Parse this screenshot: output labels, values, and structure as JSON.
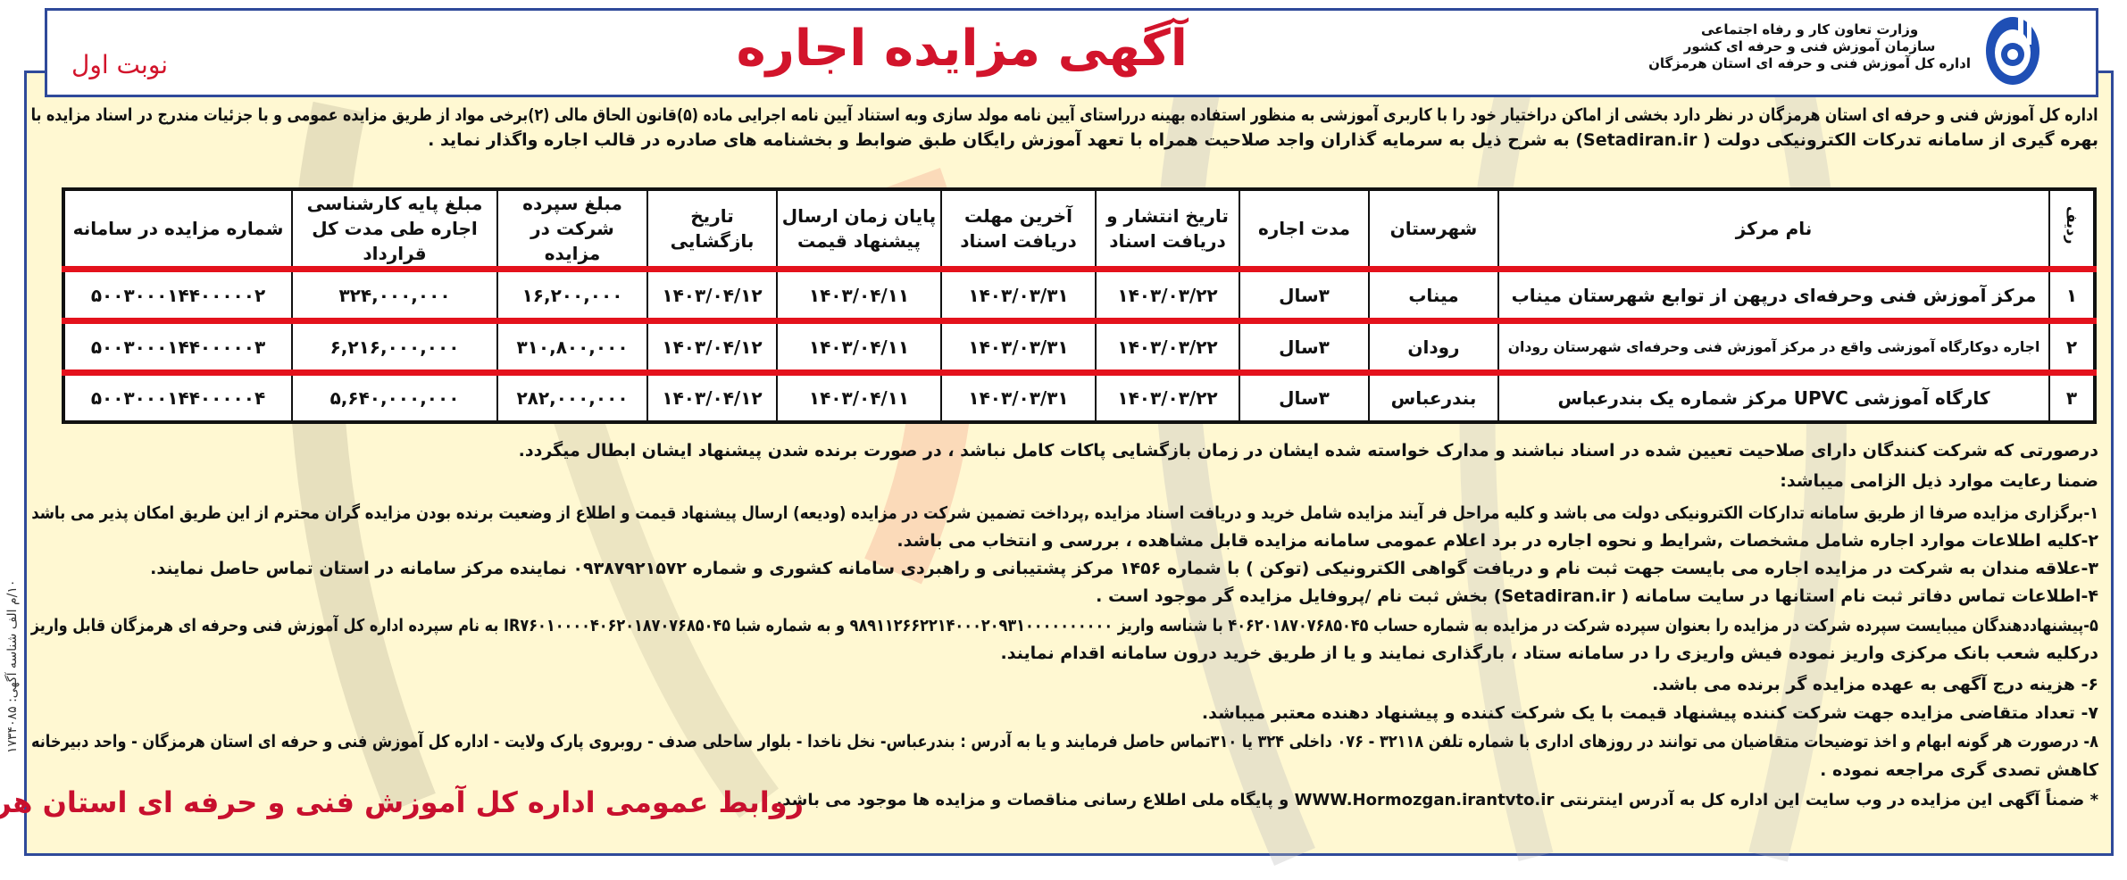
{
  "header": {
    "title": "آگهی مزایده اجاره",
    "round": "نوبت اول",
    "ministry_lines": [
      "وزارت تعاون کار و رفاه اجتماعی",
      "سازمان آموزش فنی و حرفه ای کشور",
      "اداره کل آموزش فنی و حرفه ای استان هرمزگان"
    ],
    "logo_icon": "gear-tvto-logo-icon",
    "colors": {
      "accent_red": "#d2142b",
      "border_blue": "#2f4a9a",
      "background": "#fff8d2"
    }
  },
  "intro": [
    "اداره کل آموزش فنی و حرفه ای استان هرمزگان در نظر دارد بخشی از اماکن دراختیار خود را با کاربری آموزشی به منظور استفاده بهینه درراستای آیین نامه مولد سازی وبه استناد آیین نامه اجرایی ماده (۵)قانون الحاق مالی (۲)برخی مواد از طریق مزایده عمومی و با جزئیات مندرج در اسناد مزایده با",
    "بهره گیری از سامانه تدرکات الکترونیکی دولت ( Setadiran.ir) به شرح ذیل به سرمایه گذاران واجد صلاحیت همراه با تعهد آموزش رایگان طبق ضوابط و بخشنامه های صادره در قالب اجاره واگذار نماید ."
  ],
  "table": {
    "headers": [
      "ردیف",
      "نام مرکز",
      "شهرستان",
      "مدت اجاره",
      "تاریخ انتشار و دریافت اسناد",
      "آخرین مهلت دریافت اسناد",
      "پایان زمان ارسال پیشنهاد قیمت",
      "تاریخ بازگشایی",
      "مبلغ سپرده شرکت در مزایده",
      "مبلغ پایه کارشناسی اجاره طی مدت کل قرارداد",
      "شماره مزایده در سامانه"
    ],
    "rows": [
      [
        "۱",
        "مرکز آموزش فنی وحرفه‌ای درپهن از توابع شهرستان میناب",
        "میناب",
        "۳سال",
        "۱۴۰۳/۰۳/۲۲",
        "۱۴۰۳/۰۳/۳۱",
        "۱۴۰۳/۰۴/۱۱",
        "۱۴۰۳/۰۴/۱۲",
        "۱۶,۲۰۰,۰۰۰",
        "۳۲۴,۰۰۰,۰۰۰",
        "۵۰۰۳۰۰۰۱۴۴۰۰۰۰۰۲"
      ],
      [
        "۲",
        "اجاره دوکارگاه آموزشی واقع در مرکز آموزش فنی وحرفه‌ای شهرستان رودان",
        "رودان",
        "۳سال",
        "۱۴۰۳/۰۳/۲۲",
        "۱۴۰۳/۰۳/۳۱",
        "۱۴۰۳/۰۴/۱۱",
        "۱۴۰۳/۰۴/۱۲",
        "۳۱۰,۸۰۰,۰۰۰",
        "۶,۲۱۶,۰۰۰,۰۰۰",
        "۵۰۰۳۰۰۰۱۴۴۰۰۰۰۰۳"
      ],
      [
        "۳",
        "کارگاه آموزشی UPVC مرکز شماره یک بندرعباس",
        "بندرعباس",
        "۳سال",
        "۱۴۰۳/۰۳/۲۲",
        "۱۴۰۳/۰۳/۳۱",
        "۱۴۰۳/۰۴/۱۱",
        "۱۴۰۳/۰۴/۱۲",
        "۲۸۲,۰۰۰,۰۰۰",
        "۵,۶۴۰,۰۰۰,۰۰۰",
        "۵۰۰۳۰۰۰۱۴۴۰۰۰۰۰۴"
      ]
    ]
  },
  "notes": [
    "درصورتی که شرکت کنندگان دارای صلاحیت تعیین شده در اسناد نباشند و مدارک خواسته شده ایشان در زمان بازگشایی پاکات کامل نباشد ، در صورت برنده شدن پیشنهاد ایشان ابطال میگردد.",
    "ضمنا رعایت موارد ذیل الزامی میباشد:",
    "۱-برگزاری مزایده صرفا از طریق سامانه تدارکات الکترونیکی دولت می باشد و کلیه مراحل فر آیند مزایده شامل خرید و دریافت اسناد مزایده ,پرداخت تضمین شرکت در مزایده (ودیعه) ارسال پیشنهاد قیمت و اطلاع از وضعیت برنده بودن مزایده گران محترم از این طریق امکان پذیر می باشد",
    "۲-کلیه اطلاعات موارد اجاره شامل مشخصات ,شرایط و نحوه اجاره در برد اعلام عمومی سامانه مزایده قابل مشاهده ، بررسی و انتخاب می باشد.",
    "۳-علاقه مندان به شرکت در مزایده اجاره می بایست جهت ثبت نام و دریافت گواهی الکترونیکی (توکن ) با شماره ۱۴۵۶ مرکز پشتیبانی و راهبردی سامانه کشوری و شماره ۰۹۳۸۷۹۲۱۵۷۲ نماینده مرکز سامانه در استان تماس حاصل نمایند.",
    "۴-اطلاعات تماس دفاتر ثبت نام استانها در سایت سامانه ( Setadiran.ir) بخش ثبت نام /پروفایل مزایده گر موجود است .",
    "۵-پیشنهاددهندگان میبایست سپرده شرکت در مزایده را بعنوان سپرده شرکت در مزایده به شماره حساب ۴۰۶۲۰۱۸۷۰۷۶۸۵۰۴۵ با شناسه واریز ۹۸۹۱۱۲۶۶۲۲۱۴۰۰۰۲۰۹۳۱۰۰۰۰۰۰۰۰۰۰ و به شماره شبا IR۷۶۰۱۰۰۰۰۴۰۶۲۰۱۸۷۰۷۶۸۵۰۴۵ به نام سپرده اداره کل آموزش فنی وحرفه ای هرمزگان قابل واریز",
    "درکلیه شعب بانک مرکزی واریز نموده فیش واریزی را در سامانه ستاد ، بارگذاری نمایند و یا از طریق خرید درون سامانه اقدام نمایند.",
    "۶- هزینه درج آگهی به عهده مزایده گر برنده می باشد.",
    "۷- تعداد متقاضی مزایده جهت شرکت کننده پیشنهاد قیمت با یک شرکت کننده و پیشنهاد دهنده معتبر میباشد.",
    "۸- درصورت هر گونه ابهام و اخذ توضیحات متقاضیان می توانند در روزهای اداری با شماره تلفن ۳۲۱۱۸ - ۰۷۶ داخلی ۳۲۴ یا ۳۱۰تماس حاصل فرمایند و یا به آدرس : بندرعباس- نخل ناخدا - بلوار ساحلی صدف - روبروی پارک ولایت - اداره کل آموزش فنی و حرفه ای استان هرمزگان - واحد دبیرخانه",
    "کاهش تصدی گری مراجعه نموده .",
    "* ضمناً آگهی این مزایده در وب سایت این اداره کل به آدرس اینترنتی WWW.Hormozgan.irantvto.ir و پایگاه ملی اطلاع رسانی مناقصات و مزایده ها موجود می باشد."
  ],
  "footer": {
    "signature": "روابط عمومی اداره کل آموزش فنی و حرفه ای استان هرمزگان",
    "side_note": "۱۰/م الف   شناسه آگهی: ۱۷۳۴۰۸۵"
  }
}
